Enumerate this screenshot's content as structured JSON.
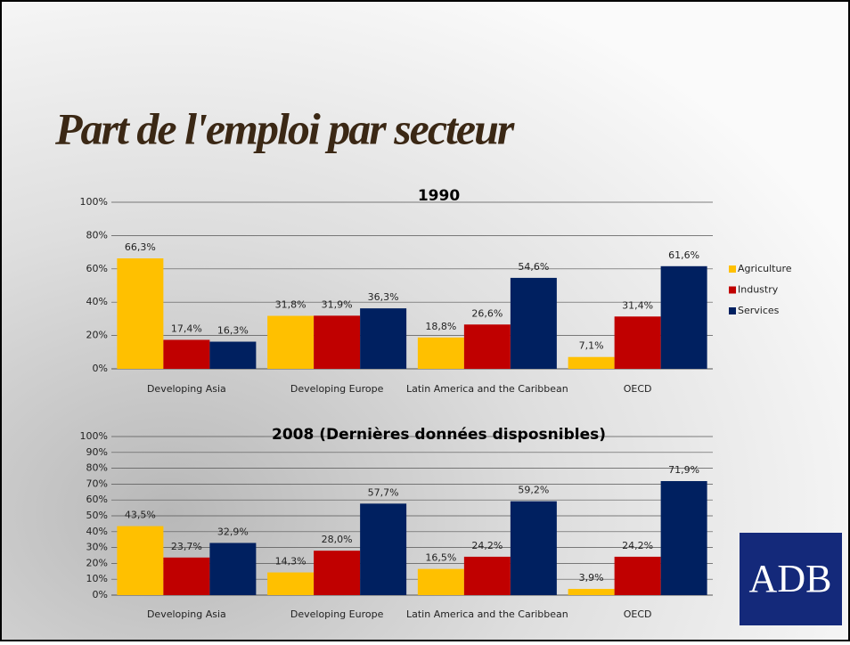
{
  "title": "Part de l'emploi par secteur",
  "logo": "ADB",
  "chart_data": [
    {
      "type": "bar",
      "title": "1990",
      "categories": [
        "Developing Asia",
        "Developing Europe",
        "Latin America and the Caribbean",
        "OECD"
      ],
      "series": [
        {
          "name": "Agriculture",
          "color": "#FFC000",
          "values": [
            66.3,
            31.8,
            18.8,
            7.1
          ],
          "value_labels": [
            "66,3%",
            "31,8%",
            "18,8%",
            "7,1%"
          ]
        },
        {
          "name": "Industry",
          "color": "#C00000",
          "values": [
            17.4,
            31.9,
            26.6,
            31.4
          ],
          "value_labels": [
            "17,4%",
            "31,9%",
            "26,6%",
            "31,4%"
          ]
        },
        {
          "name": "Services",
          "color": "#002060",
          "values": [
            16.3,
            36.3,
            54.6,
            61.6
          ],
          "value_labels": [
            "16,3%",
            "36,3%",
            "54,6%",
            "61,6%"
          ]
        }
      ],
      "ylim": [
        0,
        100
      ],
      "yticks": [
        {
          "value": 0,
          "label": "0%"
        },
        {
          "value": 20,
          "label": "20%"
        },
        {
          "value": 40,
          "label": "40%"
        },
        {
          "value": 60,
          "label": "60%"
        },
        {
          "value": 80,
          "label": "80%"
        },
        {
          "value": 100,
          "label": "100%"
        }
      ],
      "grid": true,
      "legend": "right"
    },
    {
      "type": "bar",
      "title": "2008 (Dernières données disposnibles)",
      "categories": [
        "Developing Asia",
        "Developing Europe",
        "Latin America and the Caribbean",
        "OECD"
      ],
      "series": [
        {
          "color": "#FFC000",
          "values": [
            43.5,
            14.3,
            16.5,
            3.9
          ],
          "value_labels": [
            "43,5%",
            "14,3%",
            "16,5%",
            "3,9%"
          ]
        },
        {
          "color": "#C00000",
          "values": [
            23.7,
            28.0,
            24.2,
            24.2
          ],
          "value_labels": [
            "23,7%",
            "28,0%",
            "24,2%",
            "24,2%"
          ]
        },
        {
          "color": "#002060",
          "values": [
            32.9,
            57.7,
            59.2,
            71.9
          ],
          "value_labels": [
            "32,9%",
            "57,7%",
            "59,2%",
            "71,9%"
          ]
        }
      ],
      "ylim": [
        0,
        100
      ],
      "yticks": [
        {
          "value": 0,
          "label": "0%"
        },
        {
          "value": 10,
          "label": "10%"
        },
        {
          "value": 20,
          "label": "20%"
        },
        {
          "value": 30,
          "label": "30%"
        },
        {
          "value": 40,
          "label": "40%"
        },
        {
          "value": 50,
          "label": "50%"
        },
        {
          "value": 60,
          "label": "60%"
        },
        {
          "value": 70,
          "label": "70%"
        },
        {
          "value": 80,
          "label": "80%"
        },
        {
          "value": 90,
          "label": "90%"
        },
        {
          "value": 100,
          "label": "100%"
        }
      ],
      "grid": true
    }
  ]
}
